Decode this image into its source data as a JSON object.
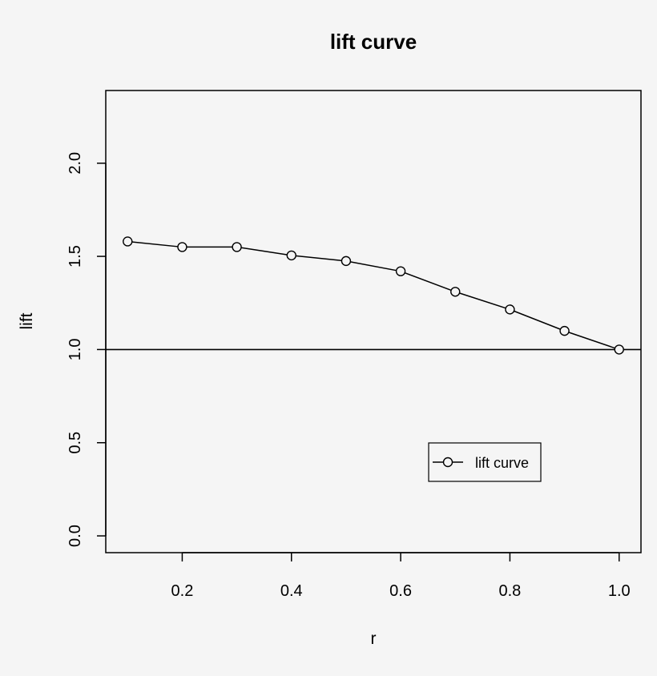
{
  "chart_data": {
    "type": "line",
    "title": "lift curve",
    "xlabel": "r",
    "ylabel": "lift",
    "xlim": [
      0.06,
      1.04
    ],
    "ylim": [
      -0.09,
      2.39
    ],
    "x_ticks": [
      "0.2",
      "0.4",
      "0.6",
      "0.8",
      "1.0"
    ],
    "y_ticks": [
      "0.0",
      "0.5",
      "1.0",
      "1.5",
      "2.0"
    ],
    "reference_line": {
      "y": 1.0
    },
    "legend": {
      "position": "bottom-right",
      "entries": [
        "lift curve"
      ]
    },
    "series": [
      {
        "name": "lift curve",
        "marker": "open-circle",
        "x": [
          0.1,
          0.2,
          0.3,
          0.4,
          0.5,
          0.6,
          0.7,
          0.8,
          0.9,
          1.0
        ],
        "y": [
          1.58,
          1.55,
          1.55,
          1.505,
          1.475,
          1.42,
          1.31,
          1.215,
          1.1,
          1.0
        ]
      }
    ],
    "grid": false,
    "colors": {
      "background": "#f5f5f5",
      "line": "#000000"
    }
  }
}
